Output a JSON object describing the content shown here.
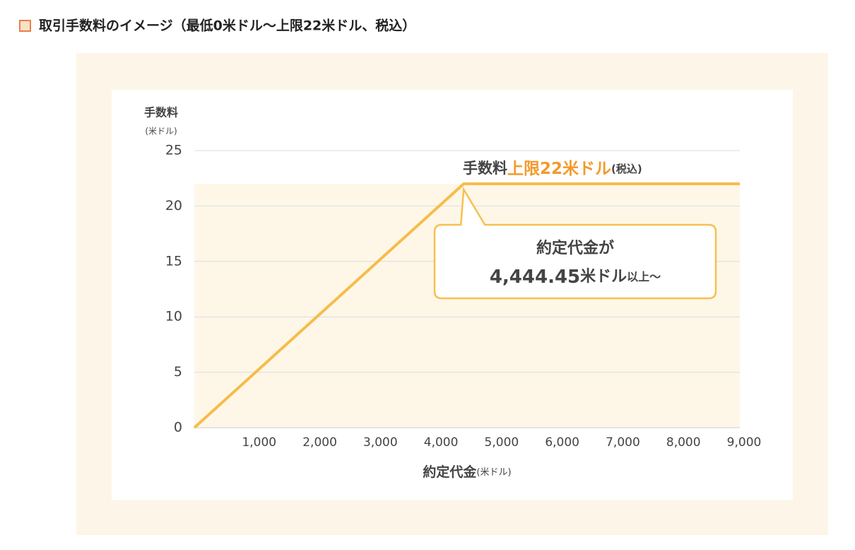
{
  "chart_data": {
    "type": "line",
    "title": "取引手数料のイメージ（最低0米ドル〜上限22米ドル、税込）",
    "y_label": "手数料",
    "y_unit": "(米ドル)",
    "x_label": "約定代金",
    "x_unit": "(米ドル)",
    "x": [
      0,
      4444.45,
      9000
    ],
    "values": [
      0,
      22,
      22
    ],
    "color": "#f7bc4a",
    "xlim": [
      0,
      9000
    ],
    "xticks": [
      {
        "value": 1000,
        "label": "1,000"
      },
      {
        "value": 2000,
        "label": "2,000"
      },
      {
        "value": 3000,
        "label": "3,000"
      },
      {
        "value": 4000,
        "label": "4,000"
      },
      {
        "value": 5000,
        "label": "5,000"
      },
      {
        "value": 6000,
        "label": "6,000"
      },
      {
        "value": 7000,
        "label": "7,000"
      },
      {
        "value": 8000,
        "label": "8,000"
      },
      {
        "value": 9000,
        "label": "9,000"
      }
    ],
    "ylim": [
      0,
      25
    ],
    "yticks": [
      0,
      5,
      10,
      15,
      20,
      25
    ],
    "grid": true,
    "annotation": [
      "手数料",
      "上限22米ドル",
      "(税込)"
    ],
    "callout": {
      "line1": "約定代金が",
      "line2": [
        "4,444.45",
        "米ドル",
        "以上〜"
      ]
    }
  }
}
